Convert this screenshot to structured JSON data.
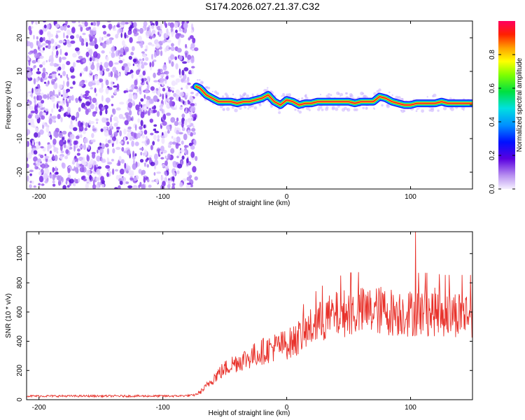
{
  "title": "S174.2026.027.21.37.C32",
  "chart_data": [
    {
      "type": "heatmap",
      "xlabel": "Height of straight line (km)",
      "ylabel": "Frequency (Hz)",
      "xlim": [
        -210,
        150
      ],
      "ylim": [
        -25,
        25
      ],
      "xticks": [
        -200,
        -100,
        0,
        100
      ],
      "yticks": [
        -20,
        -10,
        0,
        10,
        20
      ],
      "colorbar": {
        "label": "Normalized spectral amplitude",
        "range": [
          0,
          1
        ],
        "ticks": [
          0.0,
          0.2,
          0.4,
          0.6,
          0.8
        ]
      },
      "noise_region_x": [
        -210,
        -73
      ],
      "signal_track": {
        "x": [
          -73,
          -70,
          -65,
          -60,
          -55,
          -50,
          -45,
          -40,
          -35,
          -30,
          -25,
          -20,
          -15,
          -10,
          -5,
          0,
          5,
          10,
          15,
          20,
          25,
          30,
          35,
          40,
          45,
          50,
          55,
          60,
          65,
          70,
          75,
          80,
          85,
          90,
          95,
          100,
          105,
          110,
          115,
          120,
          125,
          130,
          135,
          140,
          145,
          150
        ],
        "freq": [
          5.5,
          5,
          3,
          2,
          1,
          1,
          1,
          0.5,
          1,
          1,
          1.5,
          2,
          3,
          1,
          0,
          1.5,
          1,
          0,
          0.5,
          0.5,
          1,
          1,
          1,
          1,
          1,
          1,
          0.5,
          1,
          1,
          1,
          2.5,
          2,
          1,
          0.5,
          0,
          0,
          0.5,
          0.5,
          0.5,
          0.5,
          1,
          0.5,
          0.5,
          0.5,
          0.5,
          0.5
        ]
      }
    },
    {
      "type": "line",
      "xlabel": "Height of straight line (km)",
      "ylabel": "SNR (10 * v/v)",
      "xlim": [
        -210,
        150
      ],
      "ylim": [
        0,
        1150
      ],
      "xticks": [
        -200,
        -100,
        0,
        100
      ],
      "yticks": [
        0,
        200,
        400,
        600,
        800,
        1000
      ],
      "color": "#e8312a",
      "series": [
        {
          "name": "SNR",
          "x": [
            -210,
            -180,
            -150,
            -120,
            -90,
            -75,
            -70,
            -65,
            -60,
            -55,
            -50,
            -45,
            -40,
            -35,
            -30,
            -25,
            -20,
            -15,
            -10,
            -5,
            0,
            5,
            10,
            15,
            20,
            25,
            30,
            35,
            40,
            45,
            50,
            55,
            60,
            65,
            70,
            75,
            80,
            85,
            90,
            95,
            100,
            105,
            110,
            115,
            120,
            125,
            130,
            135,
            140,
            145,
            150
          ],
          "y": [
            25,
            25,
            25,
            25,
            25,
            30,
            50,
            90,
            140,
            180,
            210,
            240,
            260,
            275,
            290,
            310,
            330,
            345,
            360,
            370,
            380,
            395,
            430,
            460,
            495,
            520,
            545,
            565,
            580,
            590,
            600,
            600,
            605,
            605,
            610,
            610,
            610,
            600,
            600,
            600,
            590,
            600,
            600,
            600,
            600,
            590,
            590,
            590,
            590,
            590,
            590
          ]
        }
      ]
    }
  ]
}
